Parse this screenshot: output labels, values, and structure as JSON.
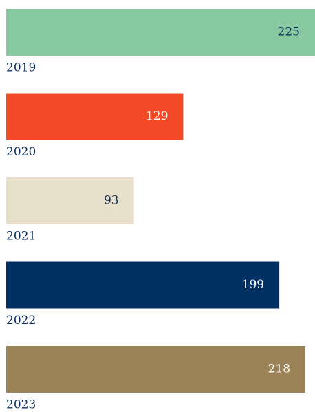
{
  "chart_data": {
    "type": "hbar",
    "categories": [
      "2019",
      "2020",
      "2021",
      "2022",
      "2023"
    ],
    "values": [
      225,
      129,
      93,
      199,
      218
    ],
    "colors": [
      "#88c9a1",
      "#f24a26",
      "#e8e0cb",
      "#003063",
      "#9b8357"
    ],
    "label_colors": [
      "#0b2d5a",
      "#ffffff",
      "#0b2d5a",
      "#ffffff",
      "#ffffff"
    ]
  }
}
